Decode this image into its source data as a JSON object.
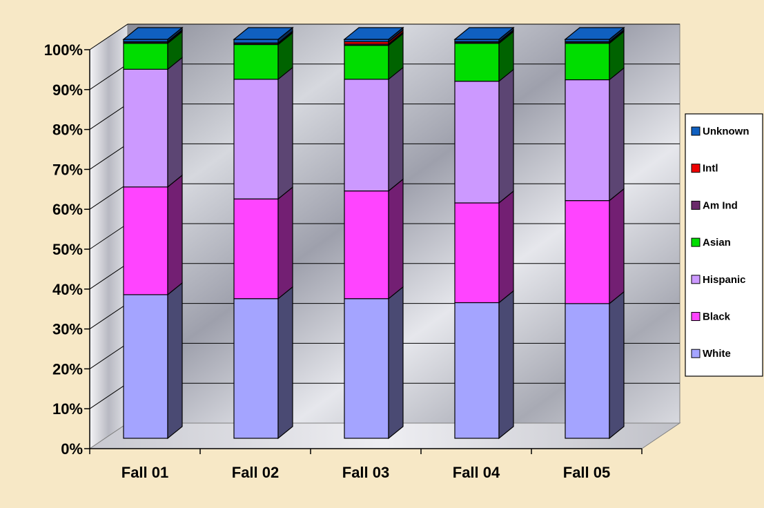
{
  "chart_data": {
    "type": "bar",
    "stacked": true,
    "percent_stacked": true,
    "three_d": true,
    "categories": [
      "Fall 01",
      "Fall 02",
      "Fall 03",
      "Fall 04",
      "Fall 05"
    ],
    "ylim": [
      0,
      100
    ],
    "yticks": [
      "0%",
      "10%",
      "20%",
      "30%",
      "40%",
      "50%",
      "60%",
      "70%",
      "80%",
      "90%",
      "100%"
    ],
    "grid": true,
    "legend_position": "right",
    "series": [
      {
        "name": "White",
        "color": "#a4a4ff",
        "values": [
          36,
          35,
          35,
          34,
          34
        ]
      },
      {
        "name": "Black",
        "color": "#ff44ff",
        "values": [
          27,
          25,
          27,
          25,
          26
        ]
      },
      {
        "name": "Hispanic",
        "color": "#cc99ff",
        "values": [
          29.5,
          30,
          28,
          30.5,
          30.5
        ]
      },
      {
        "name": "Asian",
        "color": "#00dd00",
        "values": [
          6.5,
          8.7,
          8.5,
          9.5,
          9.2
        ]
      },
      {
        "name": "Am Ind",
        "color": "#6a2a6a",
        "values": [
          0.3,
          0.3,
          0.3,
          0.3,
          0.3
        ]
      },
      {
        "name": "Intl",
        "color": "#ee0000",
        "values": [
          0.1,
          0.1,
          0.6,
          0.1,
          0.1
        ]
      },
      {
        "name": "Unknown",
        "color": "#1060c0",
        "values": [
          0.6,
          0.9,
          0.6,
          0.6,
          0.6
        ]
      }
    ]
  }
}
